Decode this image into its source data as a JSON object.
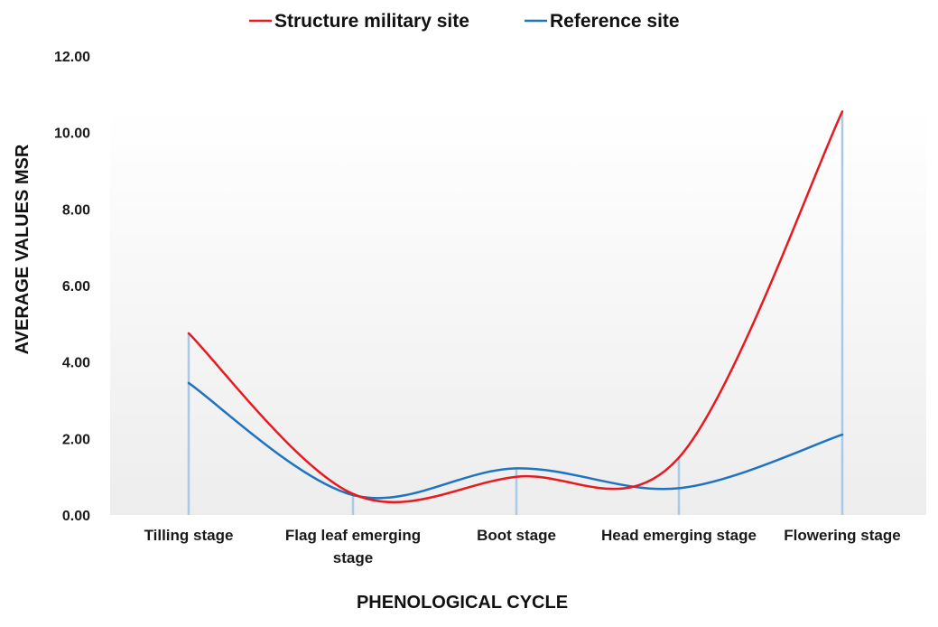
{
  "chart_data": {
    "type": "line",
    "title": "",
    "xlabel": "PHENOLOGICAL CYCLE",
    "ylabel": "AVERAGE VALUES MSR",
    "ylim": [
      0,
      12
    ],
    "yticks": [
      "0.00",
      "2.00",
      "4.00",
      "6.00",
      "8.00",
      "10.00",
      "12.00"
    ],
    "categories": [
      "Tilling stage",
      "Flag leaf emerging stage",
      "Boot stage",
      "Head emerging stage",
      "Flowering stage"
    ],
    "category_lines": [
      [
        "Tilling  stage"
      ],
      [
        "Flag leaf emerging",
        "stage"
      ],
      [
        "Boot  stage"
      ],
      [
        "Head emerging stage"
      ],
      [
        "Flowering stage"
      ]
    ],
    "smoothed": true,
    "drop_lines": true,
    "legend_position": "top-center",
    "series": [
      {
        "name": "Structure military site",
        "color": "#e8191f",
        "values": [
          4.75,
          0.55,
          1.0,
          1.5,
          10.55
        ]
      },
      {
        "name": "Reference site",
        "color": "#1f74c0",
        "values": [
          3.45,
          0.52,
          1.22,
          0.7,
          2.1
        ]
      }
    ],
    "drop_line_color": "#a9c9e6"
  }
}
